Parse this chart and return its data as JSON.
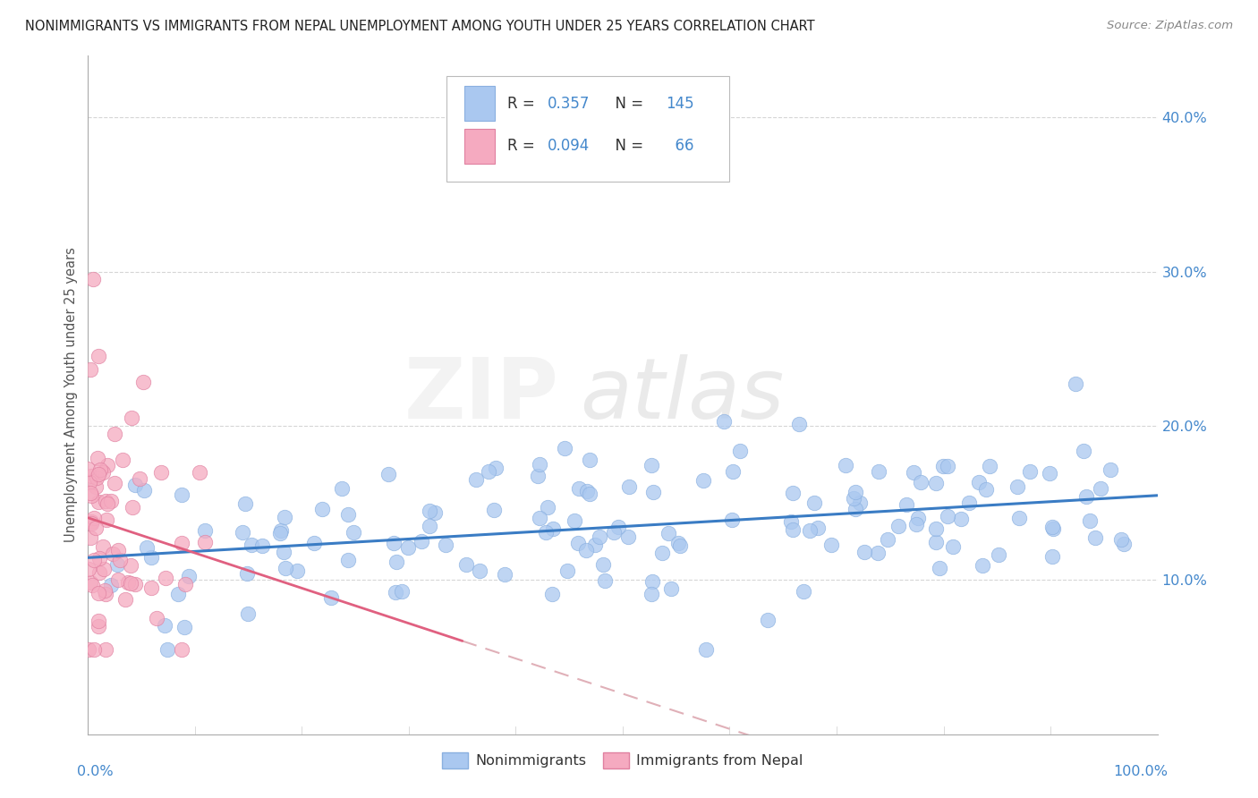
{
  "title": "NONIMMIGRANTS VS IMMIGRANTS FROM NEPAL UNEMPLOYMENT AMONG YOUTH UNDER 25 YEARS CORRELATION CHART",
  "source": "Source: ZipAtlas.com",
  "ylabel": "Unemployment Among Youth under 25 years",
  "xlim": [
    0.0,
    1.0
  ],
  "ylim": [
    0.0,
    0.44
  ],
  "yticks": [
    0.1,
    0.2,
    0.3,
    0.4
  ],
  "ytick_labels": [
    "10.0%",
    "20.0%",
    "30.0%",
    "40.0%"
  ],
  "watermark_part1": "ZIP",
  "watermark_part2": "atlas",
  "legend_nonimm_R": "0.357",
  "legend_nonimm_N": "145",
  "legend_imm_R": "0.094",
  "legend_imm_N": "66",
  "nonimm_color": "#aac8f0",
  "imm_color": "#f5aac0",
  "nonimm_line_color": "#3a7cc4",
  "imm_line_color": "#e06080",
  "dashed_line_color": "#e0b0b8",
  "background_color": "#ffffff",
  "grid_color": "#cccccc",
  "tick_label_color": "#4488cc",
  "title_fontsize": 10.5,
  "source_fontsize": 9.5,
  "legend_label_color": "#333333",
  "legend_value_color": "#4488cc"
}
